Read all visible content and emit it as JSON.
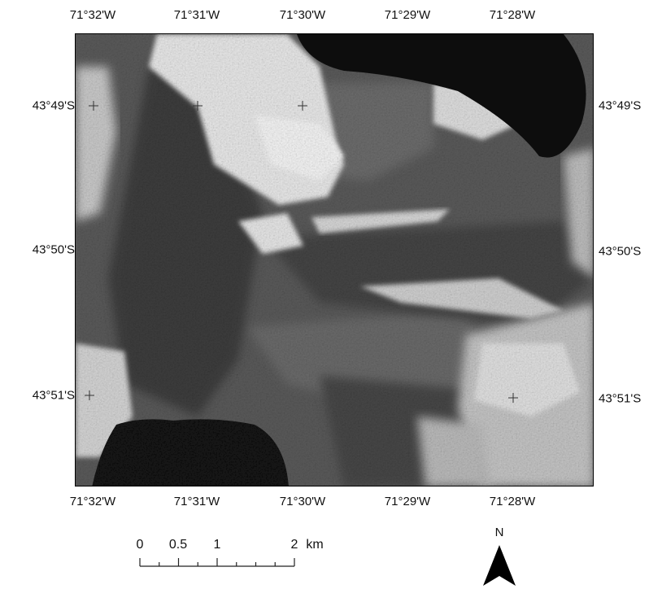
{
  "map": {
    "top_longitudes": [
      "71°32'W",
      "71°31'W",
      "71°30'W",
      "71°29'W",
      "71°28'W"
    ],
    "bottom_longitudes": [
      "71°32'W",
      "71°31'W",
      "71°30'W",
      "71°29'W",
      "71°28'W"
    ],
    "left_latitudes": [
      "43°49'S",
      "43°50'S",
      "43°51'S"
    ],
    "right_latitudes": [
      "43°49'S",
      "43°50'S",
      "43°51'S"
    ],
    "imagery": "grayscale satellite image: dark forest, bright snow/clouds, two black lakes (top-right and bottom-left)"
  },
  "scale_bar": {
    "labels": [
      "0",
      "0.5",
      "1",
      "2"
    ],
    "unit": "km"
  },
  "north_arrow": {
    "label": "N"
  },
  "colors": {
    "water": "#111111",
    "forest": "#4a4a4a",
    "snow": "#e6e6e6",
    "frame": "#000000"
  }
}
